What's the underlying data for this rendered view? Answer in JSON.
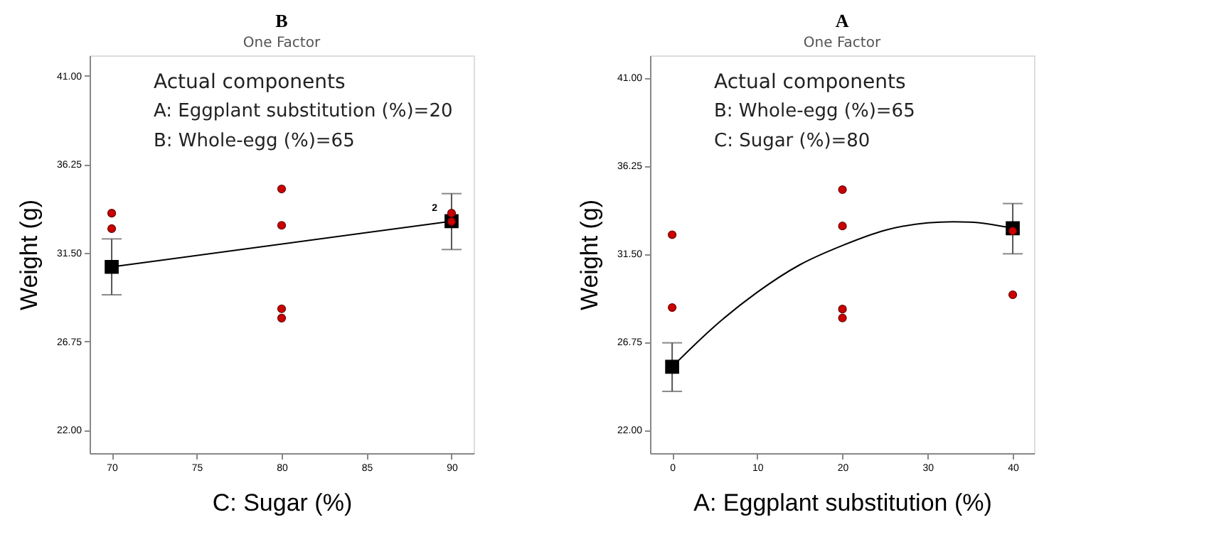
{
  "chart_data": [
    {
      "type": "scatter",
      "title": "B",
      "subtitle": "One Factor",
      "xlabel": "C: Sugar (%)",
      "ylabel": "Weight (g)",
      "xlim": [
        68.7,
        91.3
      ],
      "xticks": [
        70,
        75,
        80,
        85,
        90
      ],
      "ylim": [
        20.75,
        42.1
      ],
      "yticks": [
        {
          "value": 22,
          "label": "22.00"
        },
        {
          "value": 26.75,
          "label": "26.75"
        },
        {
          "value": 31.5,
          "label": "31.50"
        },
        {
          "value": 36.25,
          "label": "36.25"
        },
        {
          "value": 41,
          "label": "41.00"
        }
      ],
      "grid": false,
      "annotations": [
        "Actual components",
        "A: Eggplant substitution (%)=20",
        "B: Whole-egg (%)=65",
        {
          "text": "2",
          "x": 90,
          "y": 33.2
        }
      ],
      "series": [
        {
          "type": "line",
          "color": "#000000",
          "line_style": "solid",
          "marker": "none",
          "x": [
            70,
            90
          ],
          "values": [
            30.75,
            33.2
          ]
        },
        {
          "color": "#000000",
          "marker": "square",
          "x": [
            70,
            90
          ],
          "values": [
            30.75,
            33.2
          ],
          "errors": [
            [
              29.25,
              32.25
            ],
            [
              31.68,
              34.68
            ]
          ]
        },
        {
          "color": "#cc0000",
          "marker": "circle",
          "x": [
            70,
            70,
            80,
            80,
            80,
            80,
            90,
            90
          ],
          "values": [
            33.63,
            32.8,
            34.93,
            32.98,
            28.5,
            28.0,
            33.63,
            33.18
          ]
        }
      ]
    },
    {
      "type": "scatter",
      "title": "A",
      "subtitle": "One Factor",
      "xlabel": "A: Eggplant substitution (%)",
      "ylabel": "Weight (g)",
      "xlim": [
        -2.6,
        42.5
      ],
      "xticks": [
        0,
        10,
        20,
        30,
        40
      ],
      "ylim": [
        20.75,
        42.2
      ],
      "yticks": [
        {
          "value": 22,
          "label": "22.00"
        },
        {
          "value": 26.75,
          "label": "26.75"
        },
        {
          "value": 31.5,
          "label": "31.50"
        },
        {
          "value": 36.25,
          "label": "36.25"
        },
        {
          "value": 41,
          "label": "41.00"
        }
      ],
      "grid": false,
      "annotations": [
        "Actual components",
        "B: Whole-egg (%)=65",
        "C: Sugar (%)=80"
      ],
      "series": [
        {
          "type": "line",
          "color": "#000000",
          "line_style": "solid",
          "marker": "none",
          "x": [
            0,
            5,
            10,
            15,
            20,
            25,
            30,
            33,
            35,
            40
          ],
          "values": [
            25.41,
            27.6,
            29.43,
            30.91,
            31.95,
            32.77,
            33.17,
            33.23,
            33.21,
            32.88
          ]
        },
        {
          "color": "#000000",
          "marker": "square",
          "x": [
            0,
            40
          ],
          "values": [
            25.41,
            32.88
          ],
          "errors": [
            [
              24.08,
              26.7
            ],
            [
              31.5,
              34.21
            ]
          ]
        },
        {
          "color": "#cc0000",
          "marker": "circle",
          "x": [
            0,
            0,
            20,
            20,
            20,
            20,
            40,
            40
          ],
          "values": [
            32.53,
            28.6,
            34.96,
            33.0,
            28.52,
            28.04,
            32.73,
            29.29
          ]
        }
      ]
    }
  ]
}
